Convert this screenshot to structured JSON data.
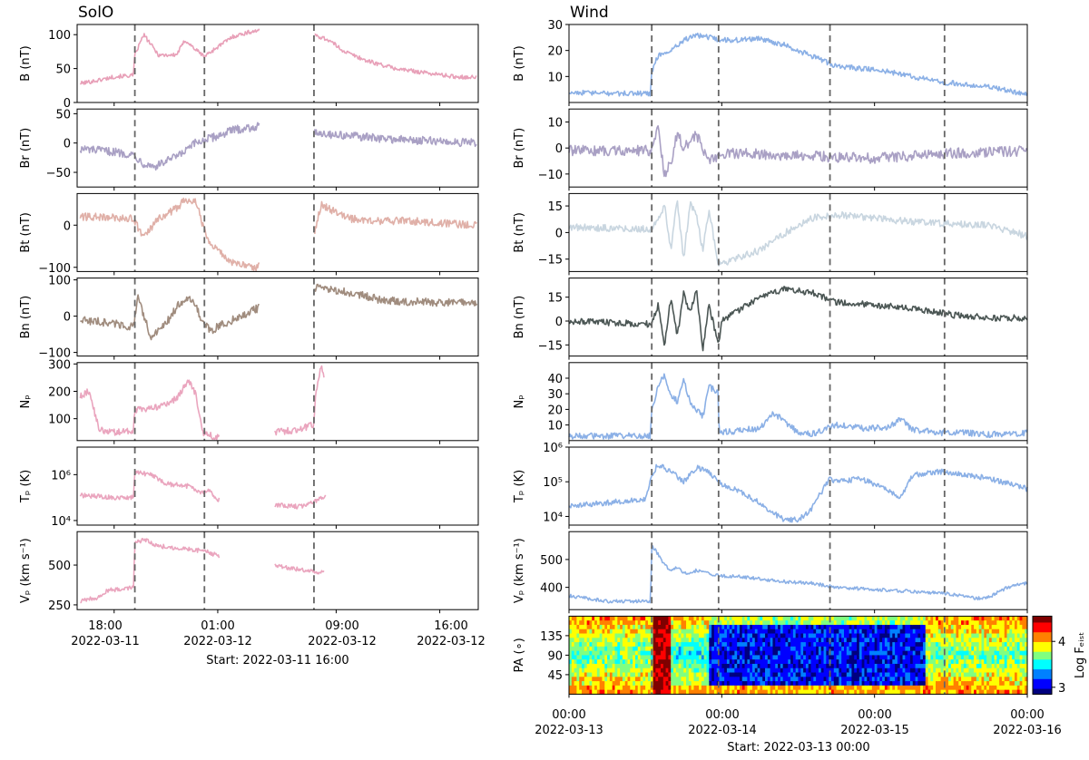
{
  "chart_data": [
    {
      "type": "line",
      "title": "SolO",
      "x_tick_labels": [
        [
          "18:00",
          "2022-03-11"
        ],
        [
          "01:00",
          "2022-03-12"
        ],
        [
          "09:00",
          "2022-03-12"
        ],
        [
          "16:00",
          "2022-03-12"
        ]
      ],
      "x_ticks_hours": [
        2,
        9,
        17,
        24
      ],
      "x_range_hours": [
        -0.5,
        26.6
      ],
      "xlabel": "Start: 2022-03-11 16:00",
      "event_lines_hours": [
        3.4,
        8.1,
        15.5
      ],
      "gaps_hours": [
        [
          11.8,
          15.5
        ]
      ],
      "panels": [
        {
          "ylabel": "B (nT)",
          "color": "#e8a0b8",
          "ylim": [
            0,
            115
          ],
          "yticks": [
            0,
            50,
            100
          ],
          "ytick_labels": [
            "0",
            "50",
            "100"
          ],
          "scale": "linear",
          "x": [
            -0.3,
            1,
            2,
            3.3,
            3.4,
            4,
            5,
            6.2,
            6.8,
            7.5,
            8.1,
            9,
            10,
            11,
            11.6,
            15.5,
            16.5,
            17.5,
            19,
            21,
            23,
            25,
            26.5
          ],
          "y": [
            28,
            33,
            38,
            40,
            70,
            100,
            70,
            70,
            92,
            78,
            68,
            82,
            97,
            103,
            106,
            100,
            92,
            76,
            62,
            50,
            44,
            38,
            37
          ],
          "noise": 3
        },
        {
          "ylabel": "Br (nT)",
          "color": "#a9a0c4",
          "ylim": [
            -75,
            58
          ],
          "yticks": [
            -50,
            0,
            50
          ],
          "ytick_labels": [
            "−50",
            "0",
            "50"
          ],
          "scale": "linear",
          "x": [
            -0.3,
            2,
            3.3,
            4,
            4.8,
            5.6,
            6.5,
            7.5,
            8.1,
            9,
            10,
            11.6,
            15.5,
            16.5,
            18,
            20,
            22,
            24,
            26.5
          ],
          "y": [
            -10,
            -15,
            -20,
            -35,
            -40,
            -30,
            -20,
            0,
            5,
            12,
            22,
            28,
            20,
            15,
            12,
            8,
            5,
            3,
            0
          ],
          "noise": 7
        },
        {
          "ylabel": "Bt (nT)",
          "color": "#e0b0a8",
          "ylim": [
            -110,
            75
          ],
          "yticks": [
            -100,
            0
          ],
          "ytick_labels": [
            "−100",
            "0"
          ],
          "scale": "linear",
          "x": [
            -0.3,
            2,
            3.3,
            4,
            5,
            6.2,
            6.8,
            7.5,
            8,
            8.3,
            9,
            10,
            11.6,
            15.5,
            16,
            17,
            18,
            20,
            22,
            24,
            26.5
          ],
          "y": [
            20,
            18,
            15,
            -30,
            15,
            40,
            60,
            60,
            0,
            -30,
            -60,
            -90,
            -100,
            -20,
            50,
            30,
            15,
            10,
            10,
            5,
            0
          ],
          "noise": 9
        },
        {
          "ylabel": "Bn (nT)",
          "color": "#a08c7e",
          "ylim": [
            -110,
            105
          ],
          "yticks": [
            -100,
            0,
            100
          ],
          "ytick_labels": [
            "−100",
            "0",
            "100"
          ],
          "scale": "linear",
          "x": [
            -0.3,
            2,
            3.3,
            3.6,
            4.5,
            5.5,
            6.5,
            7.3,
            8,
            8.5,
            9.5,
            11.6,
            15.5,
            16,
            18,
            20,
            22,
            24,
            26.5
          ],
          "y": [
            -10,
            -20,
            -30,
            50,
            -60,
            -20,
            40,
            50,
            -20,
            -40,
            -20,
            20,
            80,
            75,
            65,
            45,
            40,
            38,
            36
          ],
          "noise": 11
        },
        {
          "ylabel": "Nₚ",
          "color": "#eaa5be",
          "ylim": [
            20,
            305
          ],
          "yticks": [
            100,
            200,
            300
          ],
          "ytick_labels": [
            "100",
            "200",
            "300"
          ],
          "scale": "linear",
          "x": [
            -0.3,
            0.3,
            1,
            2,
            3,
            3.3,
            3.4,
            4.5,
            5.5,
            6.3,
            7,
            7.5,
            8,
            8.5,
            9,
            12.8,
            14.5,
            15.5,
            15.6,
            16,
            16.2
          ],
          "y": [
            180,
            200,
            60,
            50,
            55,
            60,
            130,
            140,
            150,
            180,
            240,
            190,
            50,
            40,
            30,
            50,
            60,
            80,
            180,
            300,
            250
          ],
          "noise": 12,
          "gaps_hours": [
            [
              9.1,
              12.8
            ],
            [
              16.3,
              26.6
            ]
          ]
        },
        {
          "ylabel": "Tₚ (K)",
          "color": "#eaa5be",
          "ylim": [
            3.8,
            7.2
          ],
          "yticks": [
            4,
            6
          ],
          "ytick_labels": [
            "10⁴",
            "10⁶"
          ],
          "scale": "log10",
          "x": [
            -0.3,
            2,
            3.3,
            3.4,
            4.5,
            5.5,
            7,
            8,
            8.5,
            9,
            12.8,
            14.5,
            15.5,
            16.3
          ],
          "y": [
            5.1,
            5.0,
            5.0,
            6.1,
            6.0,
            5.6,
            5.5,
            5.2,
            5.3,
            4.9,
            4.7,
            4.6,
            4.8,
            5.1
          ],
          "noise": 0.1,
          "gaps_hours": [
            [
              9.1,
              12.8
            ],
            [
              16.3,
              26.6
            ]
          ]
        },
        {
          "ylabel": "Vₚ (km s⁻¹)",
          "color": "#eaa5be",
          "ylim": [
            220,
            710
          ],
          "yticks": [
            250,
            500
          ],
          "ytick_labels": [
            "250",
            "500"
          ],
          "scale": "linear",
          "x": [
            -0.3,
            1,
            1.5,
            2.5,
            3.3,
            3.4,
            4,
            5,
            6,
            7,
            8,
            9,
            12.8,
            14,
            15.5,
            16.2
          ],
          "y": [
            270,
            300,
            340,
            350,
            360,
            640,
            660,
            620,
            610,
            600,
            590,
            560,
            500,
            480,
            460,
            450
          ],
          "noise": 14,
          "gaps_hours": [
            [
              9.1,
              12.8
            ],
            [
              16.3,
              26.6
            ]
          ]
        }
      ]
    },
    {
      "type": "line",
      "title": "Wind",
      "x_tick_labels": [
        [
          "00:00",
          "2022-03-13"
        ],
        [
          "00:00",
          "2022-03-14"
        ],
        [
          "00:00",
          "2022-03-15"
        ],
        [
          "00:00",
          "2022-03-16"
        ]
      ],
      "x_ticks_hours": [
        0,
        24,
        48,
        72
      ],
      "x_range_hours": [
        0,
        72
      ],
      "xlabel": "Start: 2022-03-13 00:00",
      "event_lines_hours": [
        13,
        23.5,
        41,
        59
      ],
      "panels": [
        {
          "ylabel": "B (nT)",
          "color": "#8bb0e6",
          "ylim": [
            0,
            30
          ],
          "yticks": [
            10,
            20,
            30
          ],
          "ytick_labels": [
            "10",
            "20",
            "30"
          ],
          "scale": "linear",
          "x": [
            0,
            5,
            12.8,
            13,
            14,
            16,
            18,
            20,
            22,
            23.4,
            23.6,
            26,
            30,
            34,
            38,
            42,
            46,
            50,
            54,
            58,
            62,
            66,
            70,
            72
          ],
          "y": [
            4,
            3.5,
            3.5,
            12,
            18,
            20,
            24,
            26,
            25,
            24,
            24,
            24,
            24.5,
            22,
            18,
            14,
            13,
            12,
            10,
            8,
            7,
            6,
            4,
            3
          ],
          "noise": 1
        },
        {
          "ylabel": "Br (nT)",
          "color": "#a9a0c4",
          "ylim": [
            -15,
            15
          ],
          "yticks": [
            -10,
            0,
            10
          ],
          "ytick_labels": [
            "−10",
            "0",
            "10"
          ],
          "scale": "linear",
          "x": [
            0,
            13,
            14,
            15,
            16,
            17,
            18,
            20,
            22,
            23.5,
            26,
            36,
            48,
            60,
            72
          ],
          "y": [
            -1,
            -1,
            8,
            -10,
            -6,
            6,
            0,
            5,
            -5,
            -3,
            -2,
            -3,
            -4,
            -2,
            -1
          ],
          "noise": 2
        },
        {
          "ylabel": "Bt (nT)",
          "color": "#c9d6e0",
          "ylim": [
            -22,
            22
          ],
          "yticks": [
            -15,
            0,
            15
          ],
          "ytick_labels": [
            "−15",
            "0",
            "15"
          ],
          "scale": "linear",
          "x": [
            0,
            13,
            14,
            15,
            16,
            17,
            18,
            19,
            20,
            21,
            22,
            23.5,
            26,
            30,
            34,
            38,
            42,
            48,
            54,
            60,
            66,
            72
          ],
          "y": [
            3,
            2,
            8,
            15,
            -10,
            18,
            -15,
            16,
            10,
            -10,
            12,
            -18,
            -15,
            -10,
            0,
            8,
            10,
            8,
            6,
            5,
            4,
            -2
          ],
          "noise": 2
        },
        {
          "ylabel": "Bn (nT)",
          "color": "#4b5654",
          "ylim": [
            -22,
            27
          ],
          "yticks": [
            -15,
            0,
            15
          ],
          "ytick_labels": [
            "−15",
            "0",
            "15"
          ],
          "scale": "linear",
          "x": [
            0,
            13,
            14,
            15,
            16,
            17,
            18,
            19,
            20,
            21,
            22,
            23.5,
            24,
            26,
            30,
            34,
            38,
            42,
            48,
            54,
            60,
            66,
            72
          ],
          "y": [
            0,
            -2,
            10,
            -15,
            15,
            -10,
            18,
            5,
            20,
            -18,
            10,
            -15,
            0,
            5,
            15,
            20,
            18,
            12,
            10,
            8,
            4,
            2,
            2
          ],
          "noise": 2
        },
        {
          "ylabel": "Nₚ",
          "color": "#8bb0e6",
          "ylim": [
            0,
            50
          ],
          "yticks": [
            10,
            20,
            30,
            40
          ],
          "ytick_labels": [
            "10",
            "20",
            "30",
            "40"
          ],
          "scale": "linear",
          "x": [
            0,
            12.8,
            13,
            14,
            15,
            16,
            17,
            18,
            19,
            20,
            21,
            22,
            23.4,
            23.6,
            26,
            30,
            32,
            34,
            36,
            38,
            42,
            46,
            50,
            52,
            54,
            58,
            62,
            66,
            72
          ],
          "y": [
            3,
            3,
            20,
            35,
            42,
            30,
            25,
            40,
            25,
            20,
            15,
            35,
            30,
            5,
            6,
            8,
            18,
            12,
            5,
            4,
            10,
            8,
            8,
            14,
            7,
            5,
            5,
            4,
            5
          ],
          "noise": 2
        },
        {
          "ylabel": "Tₚ (K)",
          "color": "#8bb0e6",
          "ylim": [
            3.75,
            6
          ],
          "yticks": [
            4,
            5,
            6
          ],
          "ytick_labels": [
            "10⁴",
            "10⁵",
            "10⁶"
          ],
          "scale": "log10",
          "x": [
            0,
            6,
            12,
            13,
            14,
            16,
            18,
            20,
            22,
            24,
            26,
            28,
            30,
            32,
            34,
            36,
            38,
            40,
            41,
            42,
            46,
            48,
            50,
            52,
            54,
            58,
            62,
            66,
            70,
            72
          ],
          "y": [
            4.3,
            4.4,
            4.5,
            5.2,
            5.5,
            5.3,
            5.0,
            5.4,
            5.3,
            4.9,
            4.8,
            4.6,
            4.4,
            4.1,
            3.9,
            3.9,
            4.2,
            4.8,
            5.1,
            5.0,
            5.1,
            4.9,
            4.8,
            4.5,
            5.2,
            5.3,
            5.2,
            5.1,
            4.9,
            4.8
          ],
          "noise": 0.08
        },
        {
          "ylabel": "Vₚ (km s⁻¹)",
          "color": "#8bb0e6",
          "ylim": [
            320,
            600
          ],
          "yticks": [
            400,
            500
          ],
          "ytick_labels": [
            "400",
            "500"
          ],
          "scale": "linear",
          "x": [
            0,
            6,
            12.8,
            13,
            14,
            15,
            16,
            17,
            18,
            20,
            22,
            24,
            26,
            30,
            34,
            38,
            42,
            46,
            50,
            54,
            58,
            62,
            64,
            66,
            68,
            70,
            72
          ],
          "y": [
            370,
            350,
            350,
            550,
            520,
            480,
            460,
            470,
            450,
            460,
            450,
            440,
            440,
            430,
            420,
            415,
            400,
            395,
            390,
            385,
            380,
            370,
            360,
            365,
            390,
            410,
            415
          ],
          "noise": 6
        },
        {
          "ylabel": "PA (∘)",
          "type": "heatmap",
          "ylim": [
            0,
            180
          ],
          "yticks": [
            45,
            90,
            135
          ],
          "ytick_labels": [
            "45",
            "90",
            "135"
          ],
          "colorbar_label": "Log Fₑᵢₛₜ",
          "colorbar_ticks": [
            3,
            4
          ],
          "colorbar_range": [
            2.85,
            4.55
          ],
          "colormap": [
            "#00007f",
            "#0000ff",
            "#0080ff",
            "#00ffff",
            "#80ff80",
            "#ffff00",
            "#ff8000",
            "#ff0000",
            "#7f0000"
          ]
        }
      ]
    }
  ]
}
